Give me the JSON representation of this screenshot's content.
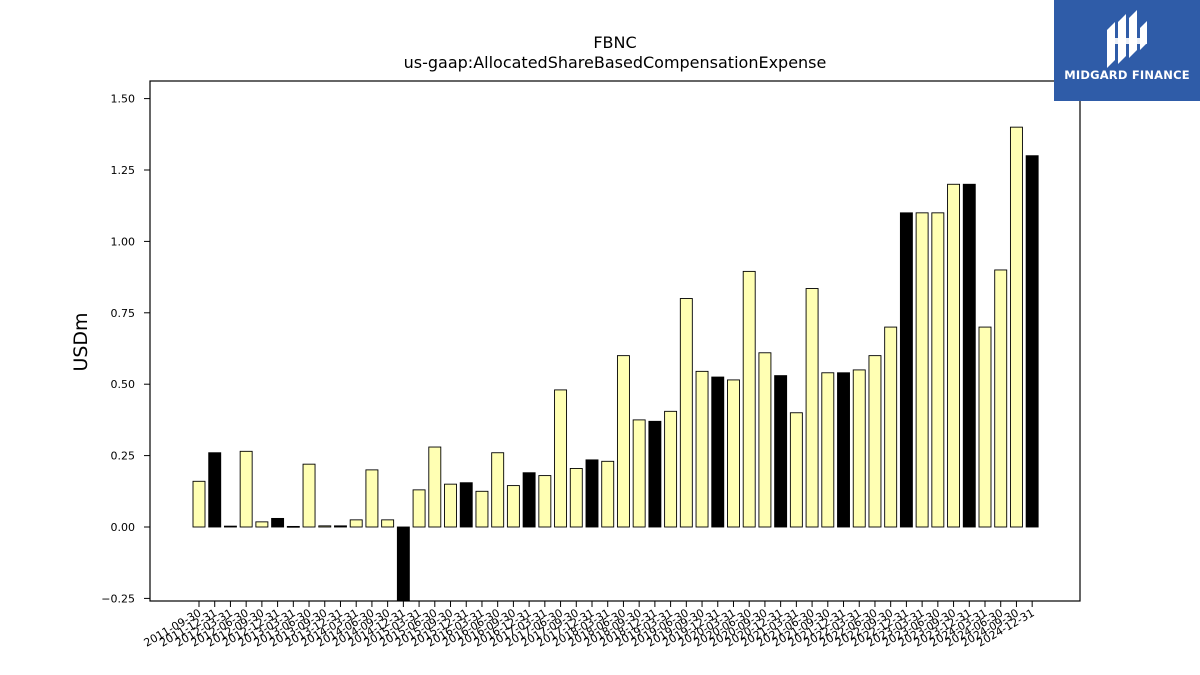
{
  "chart_data": {
    "type": "bar",
    "title": "FBNC",
    "subtitle": "us-gaap:AllocatedShareBasedCompensationExpense",
    "ylabel": "USDm",
    "xlabel": "",
    "ylim": [
      -0.27,
      1.56
    ],
    "yticks": [
      "−0.25",
      "0.00",
      "0.25",
      "0.50",
      "0.75",
      "1.00",
      "1.25",
      "1.50"
    ],
    "ytick_values": [
      -0.25,
      0.0,
      0.25,
      0.5,
      0.75,
      1.0,
      1.25,
      1.5
    ],
    "grid": false,
    "colors": {
      "q": "#ffffb3",
      "fy": "#000000",
      "edge": "#000000"
    },
    "bars": [
      {
        "date": "2011-09-30",
        "value": 0.16,
        "fy": false
      },
      {
        "date": "2011-12-31",
        "value": 0.26,
        "fy": true
      },
      {
        "date": "2012-03-31",
        "value": 0.003,
        "fy": false
      },
      {
        "date": "2012-06-30",
        "value": 0.265,
        "fy": false
      },
      {
        "date": "2012-09-30",
        "value": 0.018,
        "fy": false
      },
      {
        "date": "2012-12-31",
        "value": 0.03,
        "fy": true
      },
      {
        "date": "2013-03-31",
        "value": 0.002,
        "fy": false
      },
      {
        "date": "2013-06-30",
        "value": 0.22,
        "fy": false
      },
      {
        "date": "2013-09-30",
        "value": 0.004,
        "fy": false
      },
      {
        "date": "2013-12-31",
        "value": 0.004,
        "fy": true
      },
      {
        "date": "2014-03-31",
        "value": 0.025,
        "fy": false
      },
      {
        "date": "2014-06-30",
        "value": 0.2,
        "fy": false
      },
      {
        "date": "2014-09-30",
        "value": 0.025,
        "fy": false
      },
      {
        "date": "2014-12-31",
        "value": -0.27,
        "fy": true
      },
      {
        "date": "2015-03-31",
        "value": 0.13,
        "fy": false
      },
      {
        "date": "2015-06-30",
        "value": 0.28,
        "fy": false
      },
      {
        "date": "2015-09-30",
        "value": 0.15,
        "fy": false
      },
      {
        "date": "2015-12-31",
        "value": 0.155,
        "fy": true
      },
      {
        "date": "2016-03-31",
        "value": 0.125,
        "fy": false
      },
      {
        "date": "2016-06-30",
        "value": 0.26,
        "fy": false
      },
      {
        "date": "2016-09-30",
        "value": 0.145,
        "fy": false
      },
      {
        "date": "2016-12-31",
        "value": 0.19,
        "fy": true
      },
      {
        "date": "2017-03-31",
        "value": 0.18,
        "fy": false
      },
      {
        "date": "2017-06-30",
        "value": 0.48,
        "fy": false
      },
      {
        "date": "2017-09-30",
        "value": 0.205,
        "fy": false
      },
      {
        "date": "2017-12-31",
        "value": 0.235,
        "fy": true
      },
      {
        "date": "2018-03-31",
        "value": 0.23,
        "fy": false
      },
      {
        "date": "2018-06-30",
        "value": 0.6,
        "fy": false
      },
      {
        "date": "2018-09-30",
        "value": 0.375,
        "fy": false
      },
      {
        "date": "2018-12-31",
        "value": 0.37,
        "fy": true
      },
      {
        "date": "2019-03-31",
        "value": 0.405,
        "fy": false
      },
      {
        "date": "2019-06-30",
        "value": 0.8,
        "fy": false
      },
      {
        "date": "2019-09-30",
        "value": 0.545,
        "fy": false
      },
      {
        "date": "2019-12-31",
        "value": 0.525,
        "fy": true
      },
      {
        "date": "2020-03-31",
        "value": 0.515,
        "fy": false
      },
      {
        "date": "2020-06-30",
        "value": 0.895,
        "fy": false
      },
      {
        "date": "2020-09-30",
        "value": 0.61,
        "fy": false
      },
      {
        "date": "2020-12-31",
        "value": 0.53,
        "fy": true
      },
      {
        "date": "2021-03-31",
        "value": 0.4,
        "fy": false
      },
      {
        "date": "2021-06-30",
        "value": 0.835,
        "fy": false
      },
      {
        "date": "2021-09-30",
        "value": 0.54,
        "fy": false
      },
      {
        "date": "2021-12-31",
        "value": 0.54,
        "fy": true
      },
      {
        "date": "2022-03-31",
        "value": 0.55,
        "fy": false
      },
      {
        "date": "2022-06-30",
        "value": 0.6,
        "fy": false
      },
      {
        "date": "2022-09-30",
        "value": 0.7,
        "fy": false
      },
      {
        "date": "2022-12-31",
        "value": 1.1,
        "fy": true
      },
      {
        "date": "2023-03-31",
        "value": 1.1,
        "fy": false
      },
      {
        "date": "2023-06-30",
        "value": 1.1,
        "fy": false
      },
      {
        "date": "2023-09-30",
        "value": 1.2,
        "fy": false
      },
      {
        "date": "2023-12-31",
        "value": 1.2,
        "fy": true
      },
      {
        "date": "2024-03-31",
        "value": 0.7,
        "fy": false
      },
      {
        "date": "2024-06-30",
        "value": 0.9,
        "fy": false
      },
      {
        "date": "2024-09-30",
        "value": 1.4,
        "fy": false
      },
      {
        "date": "2024-12-31",
        "value": 1.3,
        "fy": true
      }
    ]
  },
  "logo": {
    "text": "MIDGARD FINANCE",
    "bg": "#2f5ca8",
    "icon": "midgard-logo-mark"
  }
}
